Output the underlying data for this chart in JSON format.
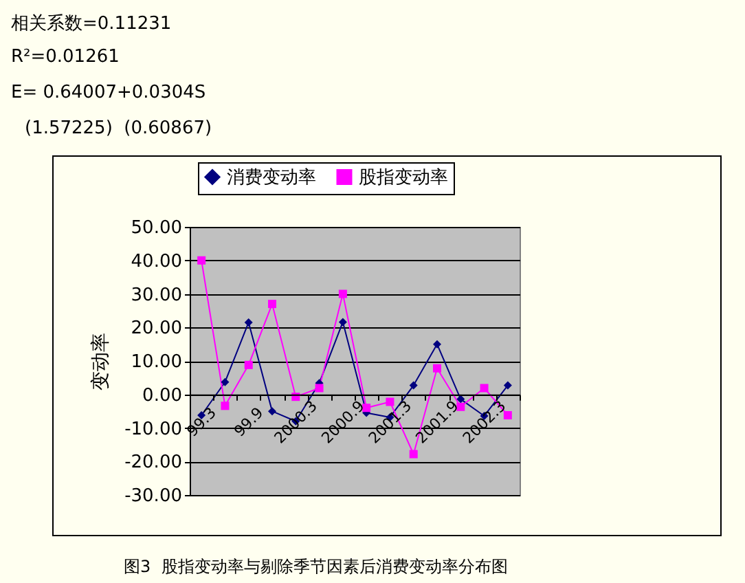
{
  "chart_data": {
    "type": "line",
    "ylabel": "变动率",
    "annotations": [
      "相关系数=0.11231",
      "R²=0.01261",
      "E= 0.64007+0.0304S",
      "(1.57225)  (0.60867)",
      "图3  股指变动率与剔除季节因素后消费变动率分布图"
    ],
    "categories": [
      "99.3",
      null,
      "99.9",
      null,
      "2000.3",
      null,
      "2000.9",
      null,
      "2001.3",
      null,
      "2001.9",
      null,
      "2002.3",
      null
    ],
    "series": [
      {
        "name": "消费变动率",
        "color": "#000080",
        "marker": "diamond",
        "values": [
          -6.2,
          3.7,
          21.5,
          -5,
          -8,
          3.4,
          21.6,
          -5.5,
          -6.8,
          2.7,
          15,
          -1.4,
          -6.4,
          2.7
        ]
      },
      {
        "name": "股指变动率",
        "color": "#ff00ff",
        "marker": "square",
        "values": [
          40,
          -3.4,
          8.8,
          27,
          -0.7,
          1.9,
          30,
          -4,
          -2.2,
          -17.8,
          7.8,
          -3.7,
          1.9,
          -6.2
        ]
      }
    ],
    "ylim": [
      -30,
      50
    ],
    "yticks": [
      {
        "value": -30,
        "label": "-30.00"
      },
      {
        "value": -20,
        "label": "-20.00"
      },
      {
        "value": -10,
        "label": "-10.00"
      },
      {
        "value": 0,
        "label": "0.00"
      },
      {
        "value": 10,
        "label": "10.00"
      },
      {
        "value": 20,
        "label": "20.00"
      },
      {
        "value": 30,
        "label": "30.00"
      },
      {
        "value": 40,
        "label": "40.00"
      },
      {
        "value": 50,
        "label": "50.00"
      }
    ],
    "grid": "y",
    "legend": "top",
    "line_style": "solid"
  }
}
